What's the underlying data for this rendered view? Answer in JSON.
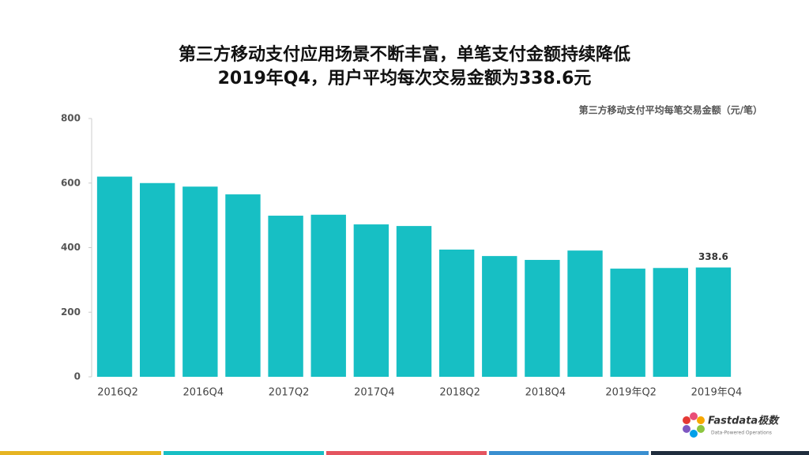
{
  "chart_data": {
    "type": "bar",
    "title": "第三方移动支付应用场景不断丰富，单笔支付金额持续降低",
    "subtitle": "2019年Q4，用户平均每次交易金额为338.6元",
    "y_label": "第三方移动支付平均每笔交易金额（元/笔）",
    "categories": [
      "2016Q2",
      null,
      "2016Q4",
      null,
      "2017Q2",
      null,
      "2017Q4",
      null,
      "2018Q2",
      null,
      "2018Q4",
      null,
      "2019年Q2",
      null,
      "2019年Q4"
    ],
    "values": [
      620,
      600,
      589,
      565,
      499,
      502,
      472,
      467,
      394,
      374,
      362,
      391,
      335,
      337,
      338.6
    ],
    "value_labels": [
      null,
      null,
      null,
      null,
      null,
      null,
      null,
      null,
      null,
      null,
      null,
      null,
      null,
      null,
      "338.6"
    ],
    "color": "#17bfc4",
    "ylim": [
      0,
      800
    ],
    "yticks": [
      0,
      200,
      400,
      600,
      800
    ],
    "grid": false
  },
  "logo": {
    "name": "Fastdata极数",
    "tagline": "Data-Powered Operations"
  }
}
